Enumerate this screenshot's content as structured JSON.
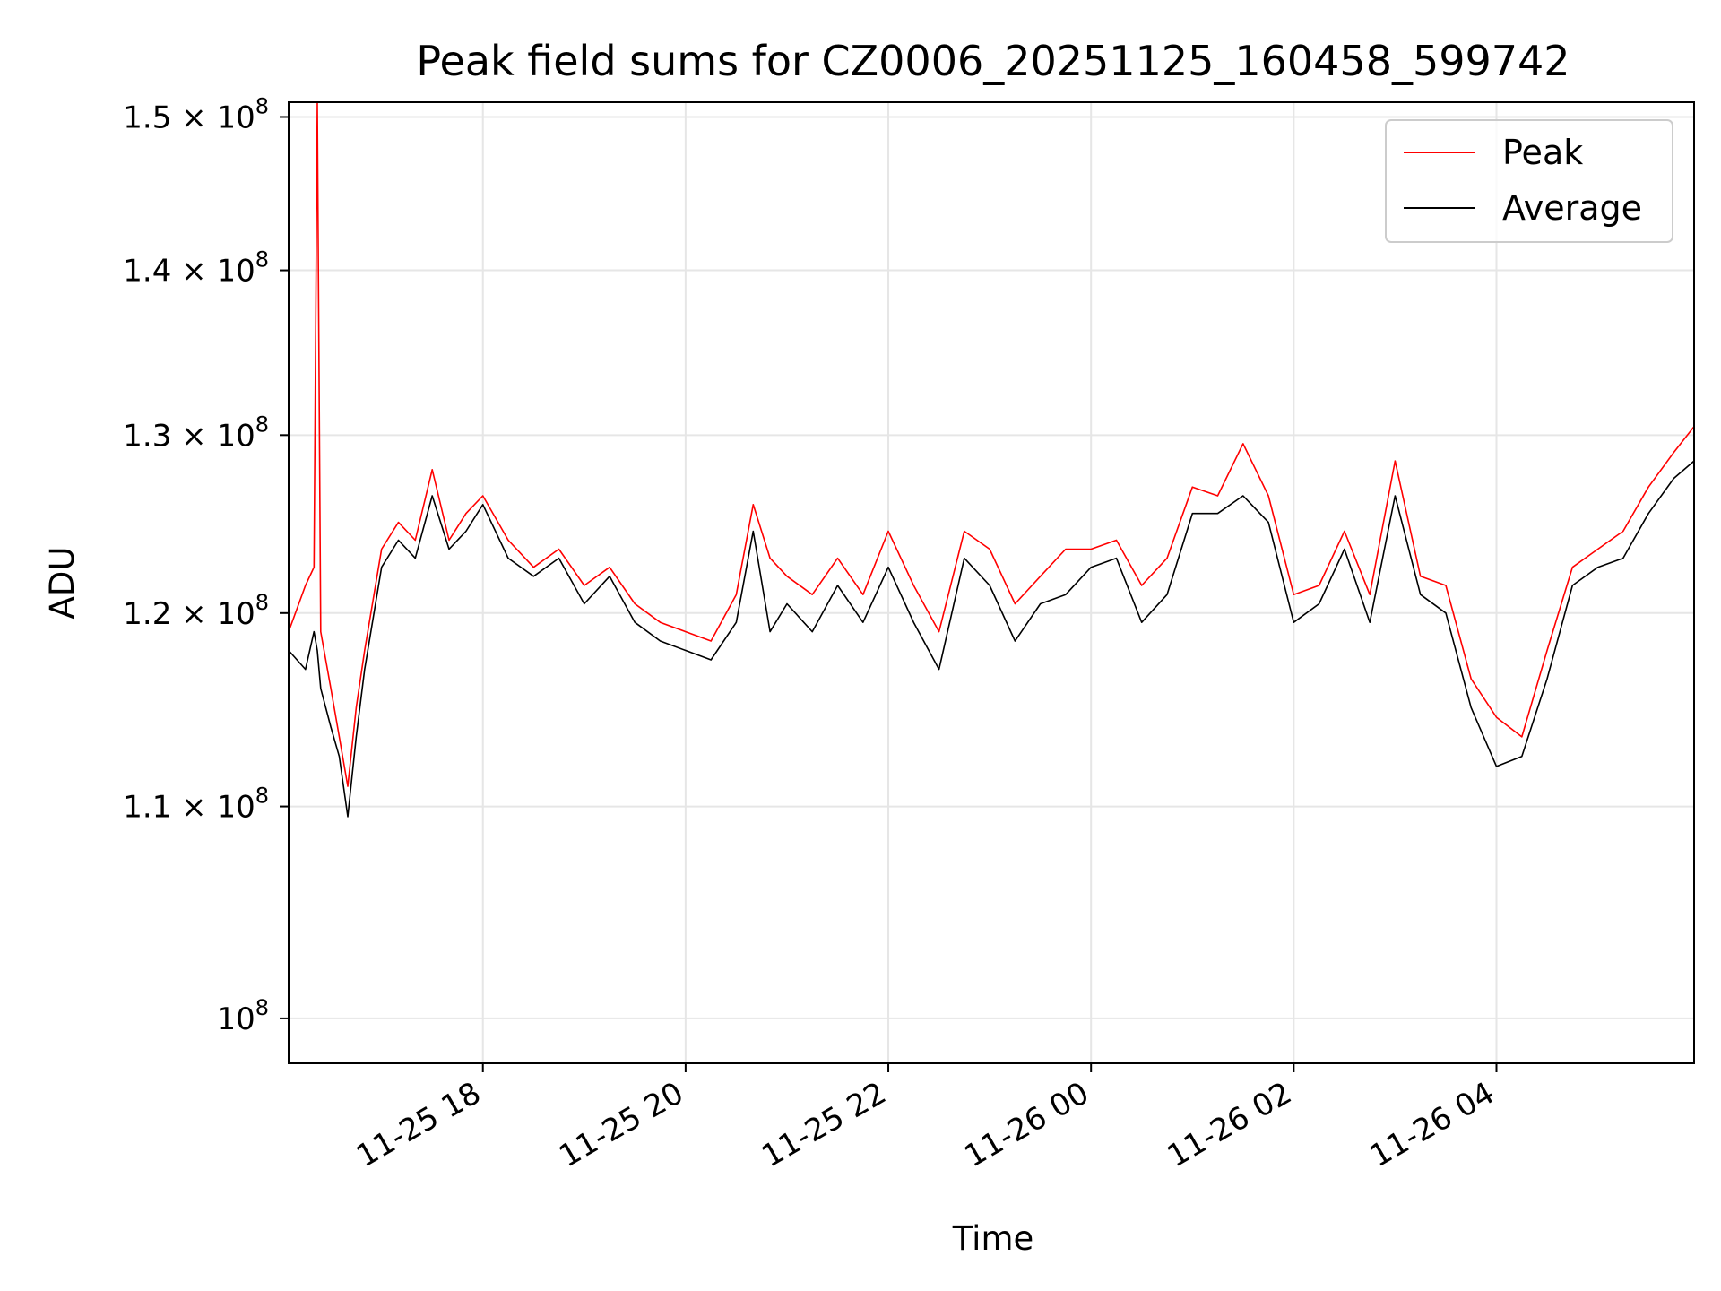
{
  "chart_data": {
    "type": "line",
    "title": "Peak field sums for CZ0006_20251125_160458_599742",
    "xlabel": "Time",
    "ylabel": "ADU",
    "yscale": "log",
    "ylim": [
      98000000,
      151000000
    ],
    "xlim": [
      "2025-11-25 16:05",
      "2025-11-26 05:57"
    ],
    "grid": true,
    "legend_position": "upper right",
    "x_ticks": [
      {
        "value": "2025-11-25 18:00",
        "label": "11-25 18"
      },
      {
        "value": "2025-11-25 20:00",
        "label": "11-25 20"
      },
      {
        "value": "2025-11-25 22:00",
        "label": "11-25 22"
      },
      {
        "value": "2025-11-26 00:00",
        "label": "11-26 00"
      },
      {
        "value": "2025-11-26 02:00",
        "label": "11-26 02"
      },
      {
        "value": "2025-11-26 04:00",
        "label": "11-26 04"
      }
    ],
    "y_ticks": [
      {
        "value": 100000000,
        "mant": "",
        "exp": "8"
      },
      {
        "value": 110000000,
        "mant": "1.1 × ",
        "exp": "8"
      },
      {
        "value": 120000000,
        "mant": "1.2 × ",
        "exp": "8"
      },
      {
        "value": 130000000,
        "mant": "1.3 × ",
        "exp": "8"
      },
      {
        "value": 140000000,
        "mant": "1.4 × ",
        "exp": "8"
      },
      {
        "value": 150000000,
        "mant": "1.5 × ",
        "exp": "8"
      }
    ],
    "series": [
      {
        "name": "Peak",
        "color": "#ff0000",
        "x": [
          "2025-11-25 16:05",
          "2025-11-25 16:15",
          "2025-11-25 16:20",
          "2025-11-25 16:22",
          "2025-11-25 16:24",
          "2025-11-25 16:30",
          "2025-11-25 16:35",
          "2025-11-25 16:40",
          "2025-11-25 16:45",
          "2025-11-25 16:50",
          "2025-11-25 17:00",
          "2025-11-25 17:10",
          "2025-11-25 17:20",
          "2025-11-25 17:30",
          "2025-11-25 17:40",
          "2025-11-25 17:50",
          "2025-11-25 18:00",
          "2025-11-25 18:15",
          "2025-11-25 18:30",
          "2025-11-25 18:45",
          "2025-11-25 19:00",
          "2025-11-25 19:15",
          "2025-11-25 19:30",
          "2025-11-25 19:45",
          "2025-11-25 20:00",
          "2025-11-25 20:15",
          "2025-11-25 20:30",
          "2025-11-25 20:40",
          "2025-11-25 20:50",
          "2025-11-25 21:00",
          "2025-11-25 21:15",
          "2025-11-25 21:30",
          "2025-11-25 21:45",
          "2025-11-25 22:00",
          "2025-11-25 22:15",
          "2025-11-25 22:30",
          "2025-11-25 22:45",
          "2025-11-25 23:00",
          "2025-11-25 23:15",
          "2025-11-25 23:30",
          "2025-11-25 23:45",
          "2025-11-26 00:00",
          "2025-11-26 00:15",
          "2025-11-26 00:30",
          "2025-11-26 00:45",
          "2025-11-26 01:00",
          "2025-11-26 01:15",
          "2025-11-26 01:30",
          "2025-11-26 01:45",
          "2025-11-26 02:00",
          "2025-11-26 02:15",
          "2025-11-26 02:30",
          "2025-11-26 02:45",
          "2025-11-26 03:00",
          "2025-11-26 03:15",
          "2025-11-26 03:30",
          "2025-11-26 03:45",
          "2025-11-26 04:00",
          "2025-11-26 04:15",
          "2025-11-26 04:30",
          "2025-11-26 04:45",
          "2025-11-26 05:00",
          "2025-11-26 05:15",
          "2025-11-26 05:30",
          "2025-11-26 05:45",
          "2025-11-26 05:57"
        ],
        "values": [
          119000000,
          121500000,
          122500000,
          151000000,
          119000000,
          116000000,
          113500000,
          111000000,
          115000000,
          118000000,
          123500000,
          125000000,
          124000000,
          128000000,
          124000000,
          125500000,
          126500000,
          124000000,
          122500000,
          123500000,
          121500000,
          122500000,
          120500000,
          119500000,
          119000000,
          118500000,
          121000000,
          126000000,
          123000000,
          122000000,
          121000000,
          123000000,
          121000000,
          124500000,
          121500000,
          119000000,
          124500000,
          123500000,
          120500000,
          122000000,
          123500000,
          123500000,
          124000000,
          121500000,
          123000000,
          127000000,
          126500000,
          129500000,
          126500000,
          121000000,
          121500000,
          124500000,
          121000000,
          128500000,
          122000000,
          121500000,
          116500000,
          114500000,
          113500000,
          118000000,
          122500000,
          123500000,
          124500000,
          127000000,
          129000000,
          130500000
        ]
      },
      {
        "name": "Average",
        "color": "#000000",
        "x": [
          "2025-11-25 16:05",
          "2025-11-25 16:15",
          "2025-11-25 16:20",
          "2025-11-25 16:22",
          "2025-11-25 16:24",
          "2025-11-25 16:30",
          "2025-11-25 16:35",
          "2025-11-25 16:40",
          "2025-11-25 16:45",
          "2025-11-25 16:50",
          "2025-11-25 17:00",
          "2025-11-25 17:10",
          "2025-11-25 17:20",
          "2025-11-25 17:30",
          "2025-11-25 17:40",
          "2025-11-25 17:50",
          "2025-11-25 18:00",
          "2025-11-25 18:15",
          "2025-11-25 18:30",
          "2025-11-25 18:45",
          "2025-11-25 19:00",
          "2025-11-25 19:15",
          "2025-11-25 19:30",
          "2025-11-25 19:45",
          "2025-11-25 20:00",
          "2025-11-25 20:15",
          "2025-11-25 20:30",
          "2025-11-25 20:40",
          "2025-11-25 20:50",
          "2025-11-25 21:00",
          "2025-11-25 21:15",
          "2025-11-25 21:30",
          "2025-11-25 21:45",
          "2025-11-25 22:00",
          "2025-11-25 22:15",
          "2025-11-25 22:30",
          "2025-11-25 22:45",
          "2025-11-25 23:00",
          "2025-11-25 23:15",
          "2025-11-25 23:30",
          "2025-11-25 23:45",
          "2025-11-26 00:00",
          "2025-11-26 00:15",
          "2025-11-26 00:30",
          "2025-11-26 00:45",
          "2025-11-26 01:00",
          "2025-11-26 01:15",
          "2025-11-26 01:30",
          "2025-11-26 01:45",
          "2025-11-26 02:00",
          "2025-11-26 02:15",
          "2025-11-26 02:30",
          "2025-11-26 02:45",
          "2025-11-26 03:00",
          "2025-11-26 03:15",
          "2025-11-26 03:30",
          "2025-11-26 03:45",
          "2025-11-26 04:00",
          "2025-11-26 04:15",
          "2025-11-26 04:30",
          "2025-11-26 04:45",
          "2025-11-26 05:00",
          "2025-11-26 05:15",
          "2025-11-26 05:30",
          "2025-11-26 05:45",
          "2025-11-26 05:57"
        ],
        "values": [
          118000000,
          117000000,
          119000000,
          118000000,
          116000000,
          114000000,
          112500000,
          109500000,
          113500000,
          117000000,
          122500000,
          124000000,
          123000000,
          126500000,
          123500000,
          124500000,
          126000000,
          123000000,
          122000000,
          123000000,
          120500000,
          122000000,
          119500000,
          118500000,
          118000000,
          117500000,
          119500000,
          124500000,
          119000000,
          120500000,
          119000000,
          121500000,
          119500000,
          122500000,
          119500000,
          117000000,
          123000000,
          121500000,
          118500000,
          120500000,
          121000000,
          122500000,
          123000000,
          119500000,
          121000000,
          125500000,
          125500000,
          126500000,
          125000000,
          119500000,
          120500000,
          123500000,
          119500000,
          126500000,
          121000000,
          120000000,
          115000000,
          112000000,
          112500000,
          116500000,
          121500000,
          122500000,
          123000000,
          125500000,
          127500000,
          128500000
        ]
      }
    ]
  }
}
